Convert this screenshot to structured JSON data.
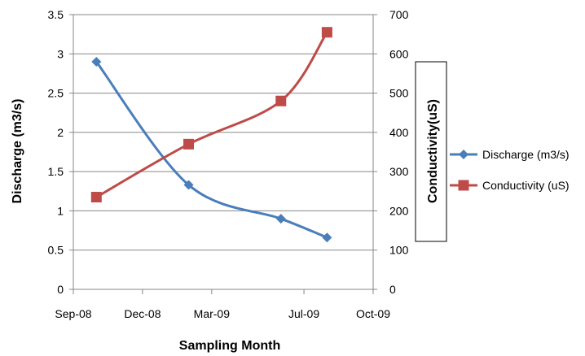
{
  "chart_data": {
    "type": "line",
    "xlabel": "Sampling Month",
    "ylabel": "Discharge (m3/s)",
    "y2label": "Conductivity(uS)",
    "x_ticks": [
      "Sep-08",
      "Dec-08",
      "Mar-09",
      "Jul-09",
      "Oct-09"
    ],
    "y_ticks": [
      "0",
      "0.5",
      "1",
      "1.5",
      "2",
      "2.5",
      "3",
      "3.5"
    ],
    "y2_ticks": [
      "0",
      "100",
      "200",
      "300",
      "400",
      "500",
      "600",
      "700"
    ],
    "xlim": [
      "Sep-08",
      "Oct-09"
    ],
    "ylim": [
      0,
      3.5
    ],
    "y2lim": [
      0,
      700
    ],
    "grid": true,
    "legend_position": "right",
    "series": [
      {
        "name": "Discharge (m3/s)",
        "axis": "left",
        "color": "#4a7ebb",
        "marker": "diamond",
        "x": [
          "Oct-08",
          "Feb-09",
          "Jun-09",
          "Aug-09"
        ],
        "values": [
          2.9,
          1.33,
          0.9,
          0.66
        ]
      },
      {
        "name": "Conductivity (uS)",
        "axis": "right",
        "color": "#be4b48",
        "marker": "square",
        "x": [
          "Oct-08",
          "Feb-09",
          "Jun-09",
          "Aug-09"
        ],
        "values": [
          235,
          370,
          480,
          655
        ]
      }
    ]
  }
}
